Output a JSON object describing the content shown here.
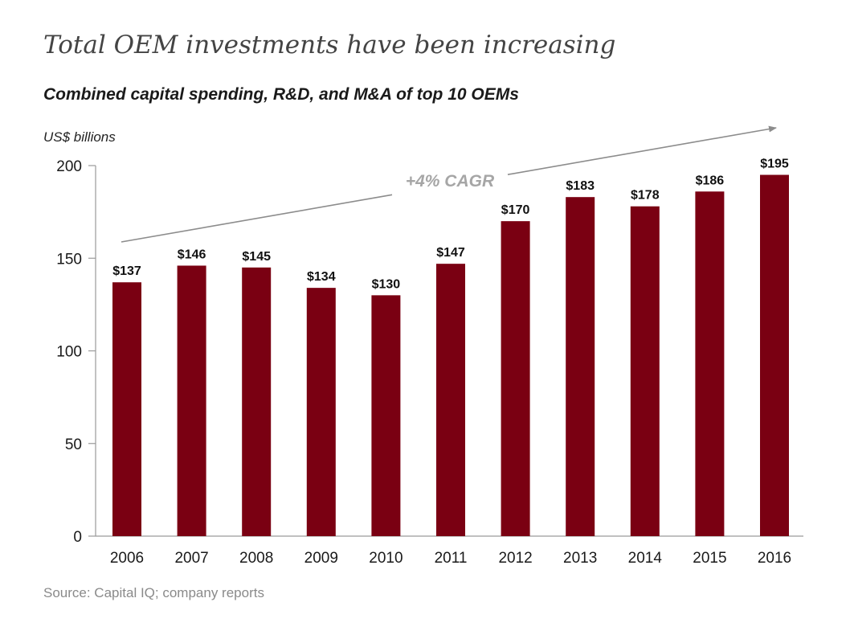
{
  "title": "Total OEM investments have been increasing",
  "subtitle": "Combined capital spending, R&D, and M&A of top 10 OEMs",
  "source": "Source: Capital IQ; company reports",
  "colors": {
    "bar": "#7a0012",
    "axis": "#9a9a9a",
    "trend": "#8c8c8c"
  },
  "chart_data": {
    "type": "bar",
    "title": "Total OEM investments have been increasing",
    "subtitle": "Combined capital spending, R&D, and M&A of top 10 OEMs",
    "ylabel": "US$ billions",
    "xlabel": "",
    "categories": [
      "2006",
      "2007",
      "2008",
      "2009",
      "2010",
      "2011",
      "2012",
      "2013",
      "2014",
      "2015",
      "2016"
    ],
    "values": [
      137,
      146,
      145,
      134,
      130,
      147,
      170,
      183,
      178,
      186,
      195
    ],
    "data_labels": [
      "$137",
      "$146",
      "$145",
      "$134",
      "$130",
      "$147",
      "$170",
      "$183",
      "$178",
      "$186",
      "$195"
    ],
    "ylim": [
      0,
      200
    ],
    "yticks": [
      0,
      50,
      100,
      150,
      200
    ],
    "ytick_labels": [
      "0",
      "50",
      "100",
      "150",
      "200"
    ],
    "grid": false,
    "legend": "none",
    "annotations": [
      {
        "text": "+4% CAGR",
        "type": "trend-arrow"
      }
    ]
  }
}
